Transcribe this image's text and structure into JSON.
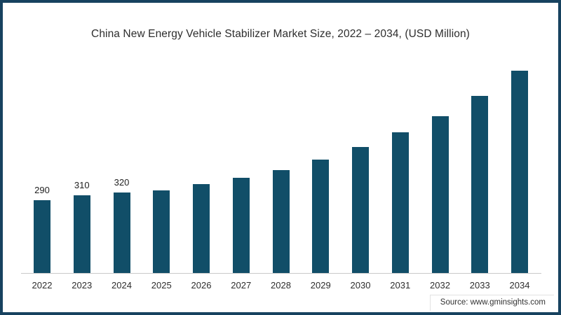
{
  "chart": {
    "title": "China New Energy Vehicle Stabilizer Market Size, 2022 – 2034, (USD Million)",
    "source": "Source: www.gminsights.com"
  },
  "chart_data": {
    "type": "bar",
    "title": "China New Energy Vehicle Stabilizer Market Size, 2022 – 2034, (USD Million)",
    "categories": [
      "2022",
      "2023",
      "2024",
      "2025",
      "2026",
      "2027",
      "2028",
      "2029",
      "2030",
      "2031",
      "2032",
      "2033",
      "2034"
    ],
    "values": [
      290,
      310,
      320,
      330,
      355,
      380,
      410,
      450,
      500,
      560,
      625,
      705,
      805
    ],
    "data_labels": [
      "290",
      "310",
      "320",
      "",
      "",
      "",
      "",
      "",
      "",
      "",
      "",
      "",
      ""
    ],
    "xlabel": "",
    "ylabel": "USD Million",
    "ylim": [
      0,
      835
    ],
    "grid": false,
    "legend": false,
    "bar_color": "#114e68",
    "axis_line_color": "#c9c9c9",
    "frame_border_color": "#17425f",
    "source": "Source: www.gminsights.com"
  }
}
